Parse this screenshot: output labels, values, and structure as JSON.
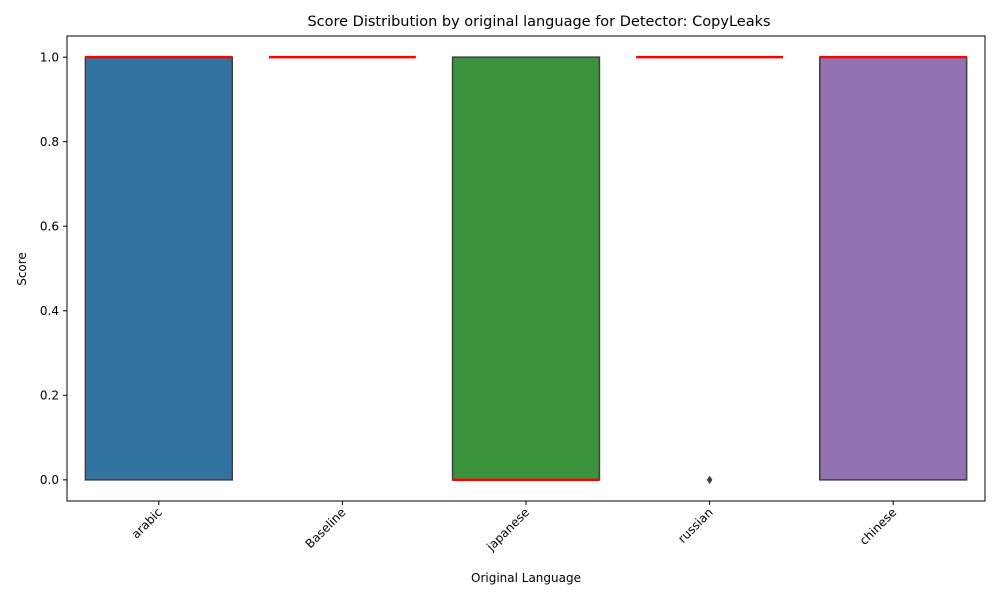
{
  "chart_data": {
    "type": "box",
    "title": "Score Distribution by original language for Detector: CopyLeaks",
    "xlabel": "Original Language",
    "ylabel": "Score",
    "ylim": [
      -0.05,
      1.05
    ],
    "y_ticks": [
      "0.0",
      "0.2",
      "0.4",
      "0.6",
      "0.8",
      "1.0"
    ],
    "grid": false,
    "median_color": "#ff0000",
    "edge_color": "#3f3f3f",
    "categories": [
      {
        "name": "arabic",
        "color": "#3274a1",
        "q1": 0,
        "q3": 1,
        "median": 1,
        "outliers": []
      },
      {
        "name": "Baseline",
        "color": "#e1812c",
        "q1": 1,
        "q3": 1,
        "median": 1,
        "outliers": []
      },
      {
        "name": "japanese",
        "color": "#3a923a",
        "q1": 0,
        "q3": 1,
        "median": 0,
        "outliers": []
      },
      {
        "name": "russian",
        "color": "#c03d3e",
        "q1": 1,
        "q3": 1,
        "median": 1,
        "outliers": [
          0
        ]
      },
      {
        "name": "chinese",
        "color": "#9372b2",
        "q1": 0,
        "q3": 1,
        "median": 1,
        "outliers": []
      }
    ]
  }
}
